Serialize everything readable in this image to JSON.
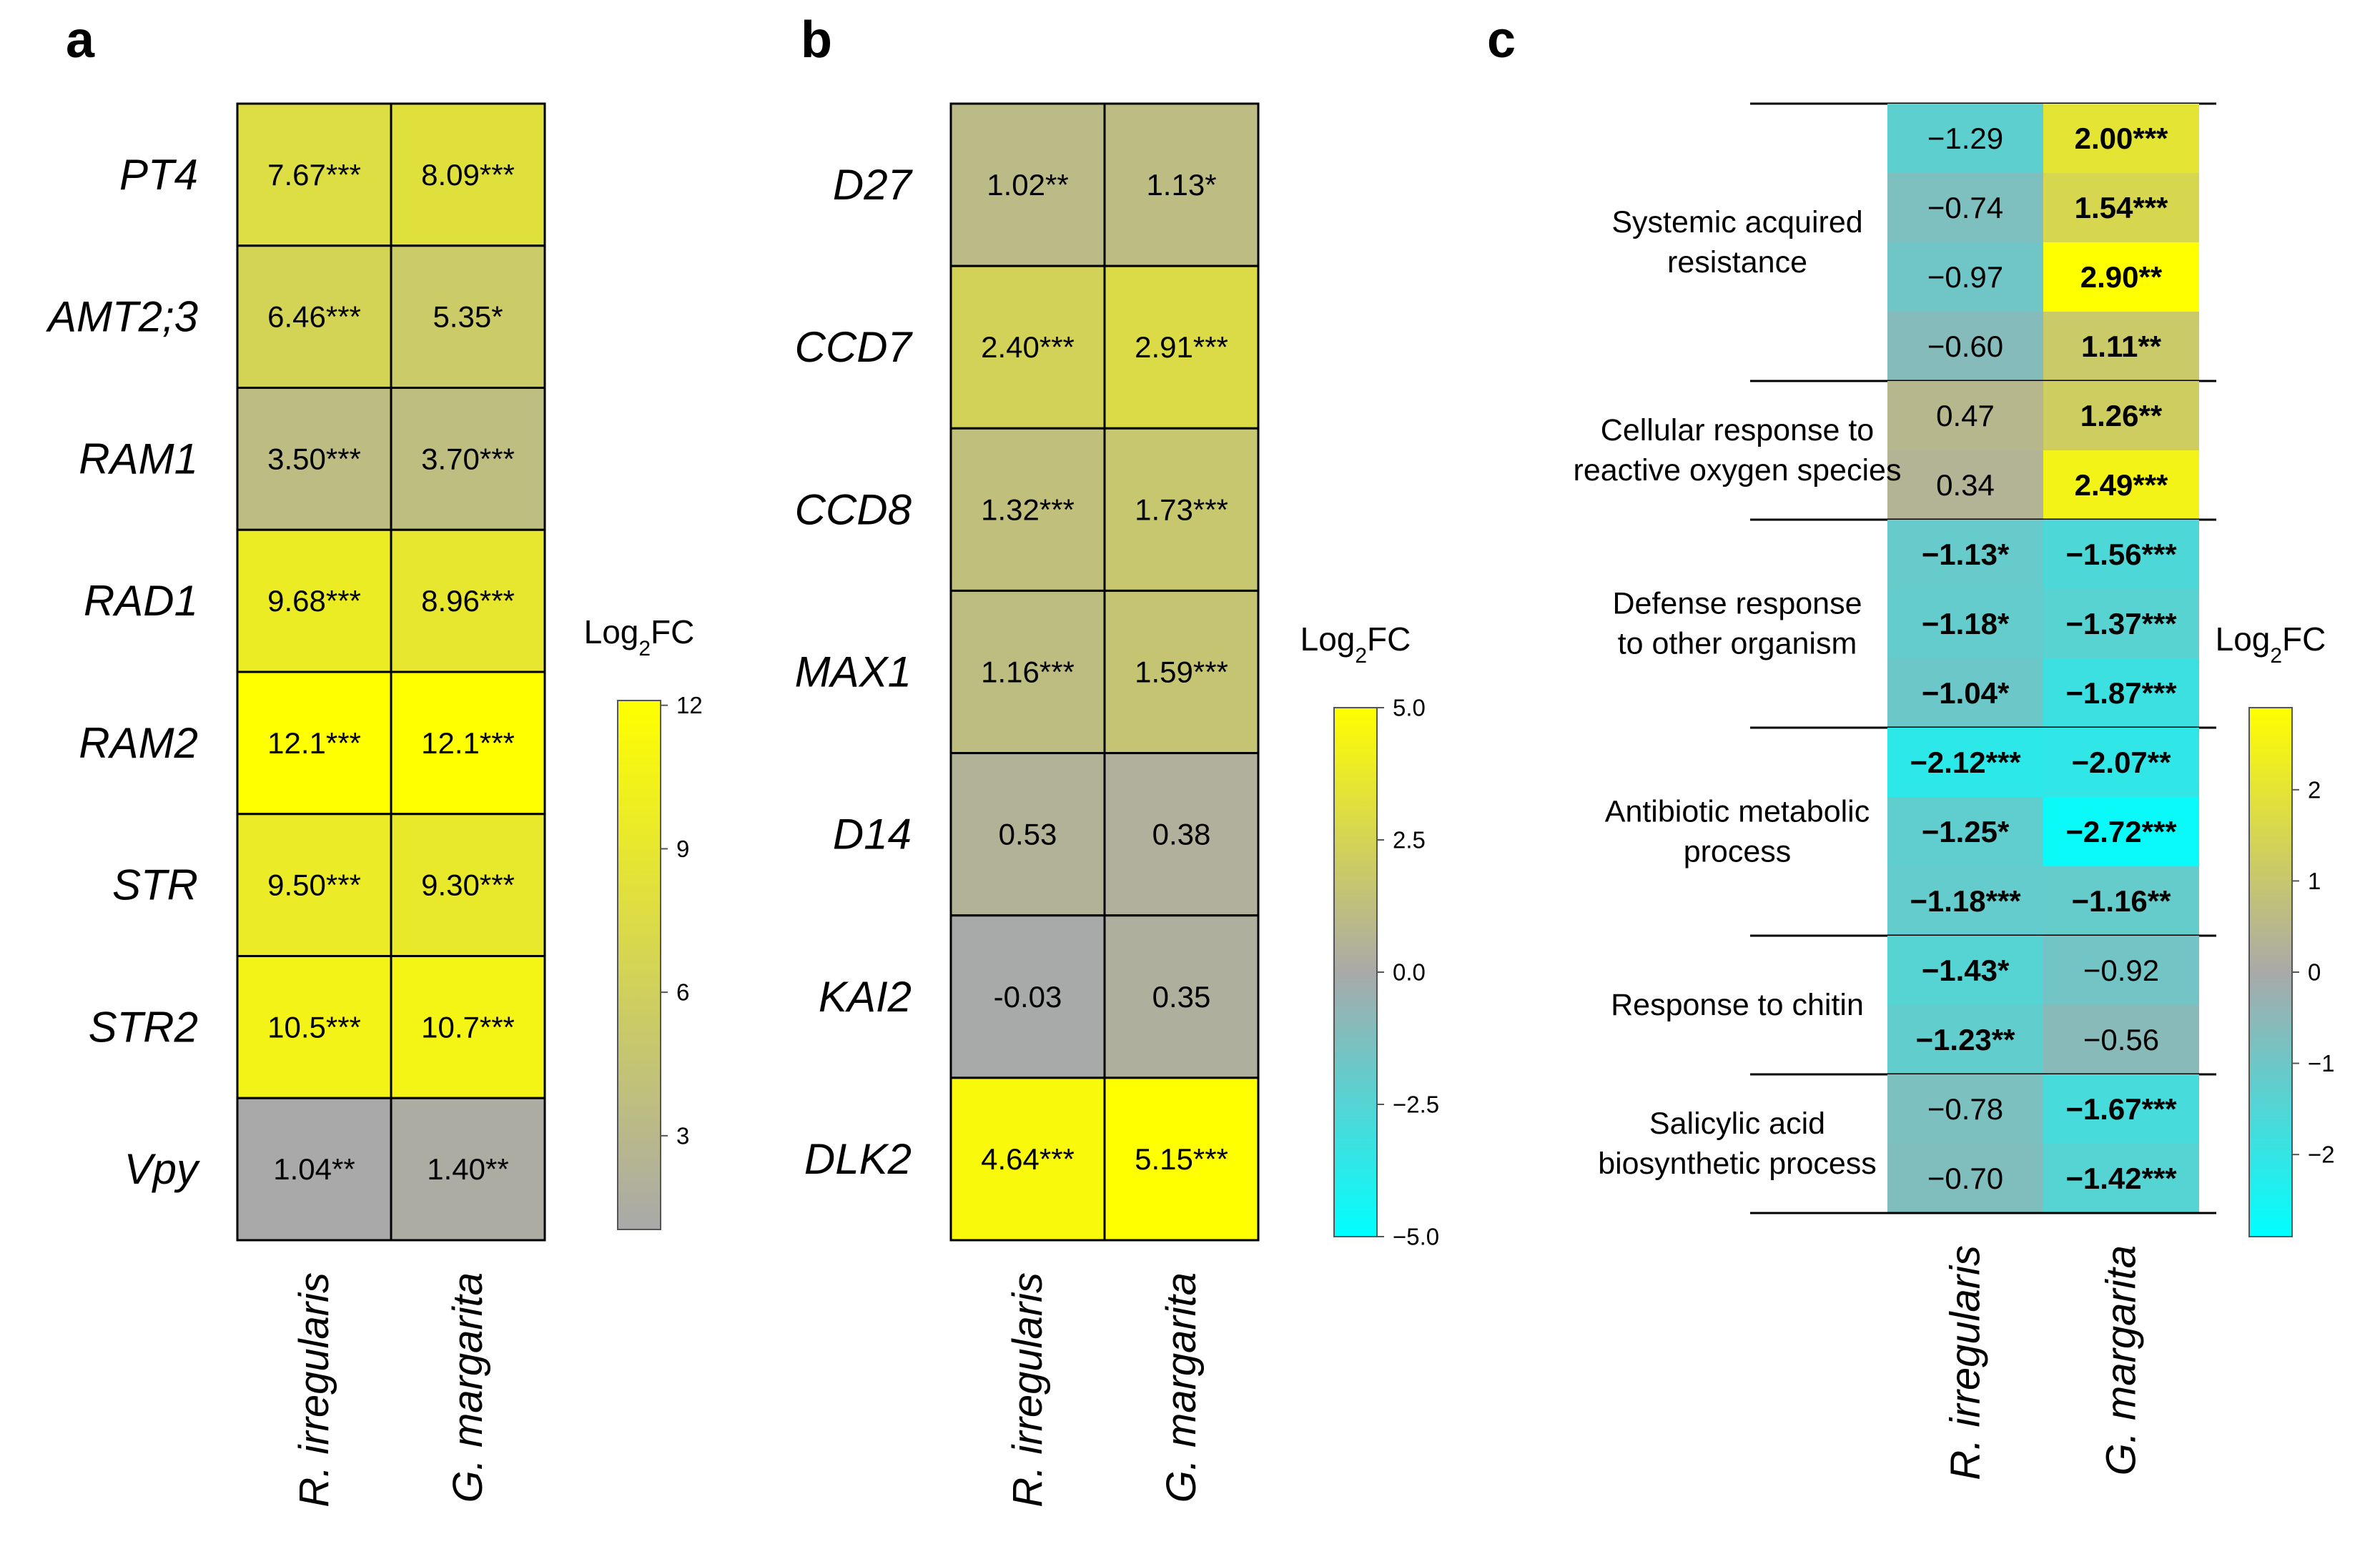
{
  "colors": {
    "neutral": "#a9a9a9",
    "positive": "#ffff00",
    "negative": "#00ffff",
    "grid": "#000000"
  },
  "chart_data": [
    {
      "panel": "a",
      "type": "heatmap",
      "rows": [
        "PT4",
        "AMT2;3",
        "RAM1",
        "RAD1",
        "RAM2",
        "STR",
        "STR2",
        "Vpy"
      ],
      "columns": [
        "R. irregularis",
        "G. margarita"
      ],
      "values": [
        [
          7.67,
          8.09
        ],
        [
          6.46,
          5.35
        ],
        [
          3.5,
          3.7
        ],
        [
          9.68,
          8.96
        ],
        [
          12.1,
          12.1
        ],
        [
          9.5,
          9.3
        ],
        [
          10.5,
          10.7
        ],
        [
          1.04,
          1.4
        ]
      ],
      "labels": [
        [
          "7.67***",
          "8.09***"
        ],
        [
          "6.46***",
          "5.35*"
        ],
        [
          "3.50***",
          "3.70***"
        ],
        [
          "9.68***",
          "8.96***"
        ],
        [
          "12.1***",
          "12.1***"
        ],
        [
          "9.50***",
          "9.30***"
        ],
        [
          "10.5***",
          "10.7***"
        ],
        [
          "1.04**",
          "1.40**"
        ]
      ],
      "colorbar": {
        "title": "Log",
        "subscript": "2",
        "title_suffix": "FC",
        "min": 1.04,
        "max": 12.1,
        "ticks": [
          3,
          6,
          9,
          12
        ],
        "tick_labels": [
          "3",
          "6",
          "9",
          "12"
        ]
      }
    },
    {
      "panel": "b",
      "type": "heatmap",
      "rows": [
        "D27",
        "CCD7",
        "CCD8",
        "MAX1",
        "D14",
        "KAI2",
        "DLK2"
      ],
      "columns": [
        "R. irregularis",
        "G. margarita"
      ],
      "values": [
        [
          1.02,
          1.13
        ],
        [
          2.4,
          2.91
        ],
        [
          1.32,
          1.73
        ],
        [
          1.16,
          1.59
        ],
        [
          0.53,
          0.38
        ],
        [
          -0.03,
          0.35
        ],
        [
          4.64,
          5.15
        ]
      ],
      "labels": [
        [
          "1.02**",
          "1.13*"
        ],
        [
          "2.40***",
          "2.91***"
        ],
        [
          "1.32***",
          "1.73***"
        ],
        [
          "1.16***",
          "1.59***"
        ],
        [
          "0.53",
          "0.38"
        ],
        [
          "-0.03",
          "0.35"
        ],
        [
          "4.64***",
          "5.15***"
        ]
      ],
      "colorbar": {
        "title": "Log",
        "subscript": "2",
        "title_suffix": "FC",
        "min": -5.0,
        "max": 5.0,
        "ticks": [
          5.0,
          2.5,
          0.0,
          -2.5,
          -5.0
        ],
        "tick_labels": [
          "5.0",
          "2.5",
          "0.0",
          "−2.5",
          "−5.0"
        ]
      }
    },
    {
      "panel": "c",
      "type": "heatmap",
      "columns": [
        "R. irregularis",
        "G. margarita"
      ],
      "groups": [
        {
          "label": [
            "Systemic acquired",
            "resistance"
          ],
          "values": [
            [
              -1.29,
              2.0
            ],
            [
              -0.74,
              1.54
            ],
            [
              -0.97,
              2.9
            ],
            [
              -0.6,
              1.11
            ]
          ],
          "labels": [
            [
              "−1.29",
              "2.00***"
            ],
            [
              "−0.74",
              "1.54***"
            ],
            [
              "−0.97",
              "2.90**"
            ],
            [
              "−0.60",
              "1.11**"
            ]
          ],
          "bold": [
            [
              false,
              true
            ],
            [
              false,
              true
            ],
            [
              false,
              true
            ],
            [
              false,
              true
            ]
          ]
        },
        {
          "label": [
            "Cellular  response to",
            "reactive oxygen species"
          ],
          "values": [
            [
              0.47,
              1.26
            ],
            [
              0.34,
              2.49
            ]
          ],
          "labels": [
            [
              "0.47",
              "1.26**"
            ],
            [
              "0.34",
              "2.49***"
            ]
          ],
          "bold": [
            [
              false,
              true
            ],
            [
              false,
              true
            ]
          ]
        },
        {
          "label": [
            "Defense response",
            "to other organism"
          ],
          "values": [
            [
              -1.13,
              -1.56
            ],
            [
              -1.18,
              -1.37
            ],
            [
              -1.04,
              -1.87
            ]
          ],
          "labels": [
            [
              "−1.13*",
              "−1.56***"
            ],
            [
              "−1.18*",
              "−1.37***"
            ],
            [
              "−1.04*",
              "−1.87***"
            ]
          ],
          "bold": [
            [
              true,
              true
            ],
            [
              true,
              true
            ],
            [
              true,
              true
            ]
          ]
        },
        {
          "label": [
            "Antibiotic metabolic",
            "process"
          ],
          "values": [
            [
              -2.12,
              -2.07
            ],
            [
              -1.25,
              -2.72
            ],
            [
              -1.18,
              -1.16
            ]
          ],
          "labels": [
            [
              "−2.12***",
              "−2.07**"
            ],
            [
              "−1.25*",
              "−2.72***"
            ],
            [
              "−1.18***",
              "−1.16**"
            ]
          ],
          "bold": [
            [
              true,
              true
            ],
            [
              true,
              true
            ],
            [
              true,
              true
            ]
          ]
        },
        {
          "label": [
            "Response to chitin"
          ],
          "values": [
            [
              -1.43,
              -0.92
            ],
            [
              -1.23,
              -0.56
            ]
          ],
          "labels": [
            [
              "−1.43*",
              "−0.92"
            ],
            [
              "−1.23**",
              "−0.56"
            ]
          ],
          "bold": [
            [
              true,
              false
            ],
            [
              true,
              false
            ]
          ]
        },
        {
          "label": [
            "Salicylic acid",
            "biosynthetic process"
          ],
          "values": [
            [
              -0.78,
              -1.67
            ],
            [
              -0.7,
              -1.42
            ]
          ],
          "labels": [
            [
              "−0.78",
              "−1.67***"
            ],
            [
              "−0.70",
              "−1.42***"
            ]
          ],
          "bold": [
            [
              false,
              true
            ],
            [
              false,
              true
            ]
          ]
        }
      ],
      "colorbar": {
        "title": "Log",
        "subscript": "2",
        "title_suffix": "FC",
        "min": -2.9,
        "max": 2.9,
        "ticks": [
          2,
          1,
          0,
          -1,
          -2
        ],
        "tick_labels": [
          "2",
          "1",
          "0",
          "−1",
          "−2"
        ]
      }
    }
  ]
}
